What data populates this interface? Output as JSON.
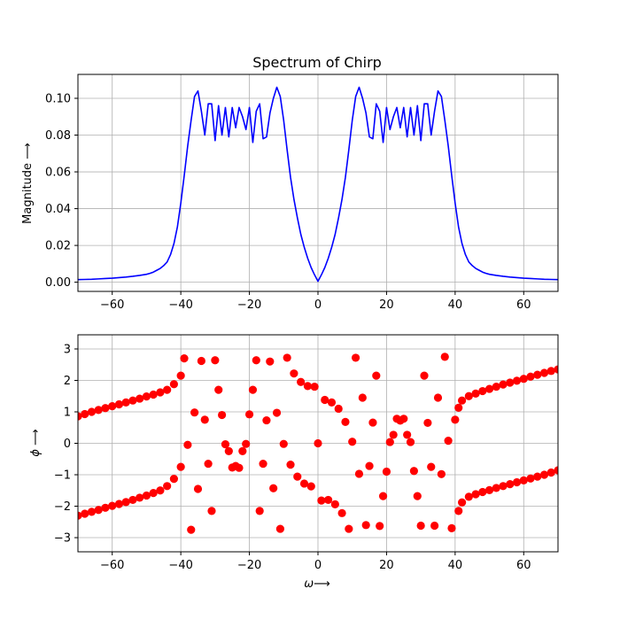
{
  "chart_data": [
    {
      "type": "line",
      "title": "Spectrum of Chirp",
      "xlabel": "",
      "ylabel": "Magnitude ⟶",
      "xlim": [
        -70,
        70
      ],
      "ylim": [
        -0.005,
        0.113
      ],
      "xticks": [
        -60,
        -40,
        -20,
        0,
        20,
        40,
        60
      ],
      "xtick_labels": [
        "−60",
        "−40",
        "−20",
        "0",
        "20",
        "40",
        "60"
      ],
      "yticks": [
        0.0,
        0.02,
        0.04,
        0.06,
        0.08,
        0.1
      ],
      "ytick_labels": [
        "0.00",
        "0.02",
        "0.04",
        "0.06",
        "0.08",
        "0.10"
      ],
      "grid": true,
      "color": "#0000ff",
      "series": [
        {
          "x": [
            0,
            1,
            2,
            3,
            4,
            5,
            6,
            7,
            8,
            9,
            10,
            11,
            12,
            13,
            14,
            15,
            16,
            17,
            18,
            19,
            20,
            21,
            22,
            23,
            24,
            25,
            26,
            27,
            28,
            29,
            30,
            31,
            32,
            33,
            34,
            35,
            36,
            37,
            38,
            39,
            40,
            41,
            42,
            43,
            44,
            45,
            46,
            47,
            48,
            49,
            50,
            52,
            54,
            56,
            58,
            60,
            62,
            64,
            66,
            68,
            70
          ],
          "y": [
            0.0005,
            0.004,
            0.008,
            0.013,
            0.019,
            0.026,
            0.035,
            0.045,
            0.057,
            0.072,
            0.088,
            0.101,
            0.106,
            0.1,
            0.092,
            0.079,
            0.078,
            0.097,
            0.093,
            0.076,
            0.095,
            0.083,
            0.09,
            0.095,
            0.084,
            0.095,
            0.079,
            0.095,
            0.08,
            0.096,
            0.077,
            0.097,
            0.097,
            0.08,
            0.093,
            0.104,
            0.101,
            0.088,
            0.074,
            0.058,
            0.043,
            0.03,
            0.021,
            0.015,
            0.011,
            0.009,
            0.0075,
            0.0065,
            0.0055,
            0.0048,
            0.0043,
            0.0037,
            0.0032,
            0.0028,
            0.0025,
            0.0022,
            0.002,
            0.0018,
            0.0016,
            0.0015,
            0.0014
          ]
        }
      ]
    },
    {
      "type": "scatter",
      "xlabel": "ω⟶",
      "ylabel": "ϕ ⟶",
      "xlim": [
        -70,
        70
      ],
      "ylim": [
        -3.45,
        3.45
      ],
      "xticks": [
        -60,
        -40,
        -20,
        0,
        20,
        40,
        60
      ],
      "xtick_labels": [
        "−60",
        "−40",
        "−20",
        "0",
        "20",
        "40",
        "60"
      ],
      "yticks": [
        -3,
        -2,
        -1,
        0,
        1,
        2,
        3
      ],
      "ytick_labels": [
        "−3",
        "−2",
        "−1",
        "0",
        "1",
        "2",
        "3"
      ],
      "grid": true,
      "color": "#ff0000",
      "series": [
        {
          "points": [
            [
              -70,
              0.86
            ],
            [
              -68,
              0.93
            ],
            [
              -66,
              1.0
            ],
            [
              -64,
              1.06
            ],
            [
              -62,
              1.12
            ],
            [
              -60,
              1.18
            ],
            [
              -58,
              1.24
            ],
            [
              -56,
              1.3
            ],
            [
              -54,
              1.36
            ],
            [
              -52,
              1.42
            ],
            [
              -50,
              1.49
            ],
            [
              -48,
              1.55
            ],
            [
              -46,
              1.62
            ],
            [
              -44,
              1.7
            ],
            [
              -42,
              1.88
            ],
            [
              -40,
              2.15
            ],
            [
              -70,
              -2.3
            ],
            [
              -68,
              -2.24
            ],
            [
              -66,
              -2.18
            ],
            [
              -64,
              -2.12
            ],
            [
              -62,
              -2.05
            ],
            [
              -60,
              -1.99
            ],
            [
              -58,
              -1.93
            ],
            [
              -56,
              -1.87
            ],
            [
              -54,
              -1.8
            ],
            [
              -52,
              -1.73
            ],
            [
              -50,
              -1.66
            ],
            [
              -48,
              -1.58
            ],
            [
              -46,
              -1.5
            ],
            [
              -44,
              -1.36
            ],
            [
              -42,
              -1.13
            ],
            [
              -40,
              -0.75
            ],
            [
              -39,
              2.7
            ],
            [
              -38,
              -0.05
            ],
            [
              -37,
              -2.75
            ],
            [
              -36,
              0.98
            ],
            [
              -35,
              -1.45
            ],
            [
              -34,
              2.62
            ],
            [
              -33,
              0.75
            ],
            [
              -32,
              -0.65
            ],
            [
              -31,
              -2.15
            ],
            [
              -30,
              2.64
            ],
            [
              -29,
              1.7
            ],
            [
              -28,
              0.9
            ],
            [
              -27,
              -0.03
            ],
            [
              -26,
              -0.25
            ],
            [
              -25,
              -0.77
            ],
            [
              -24,
              -0.72
            ],
            [
              -23,
              -0.78
            ],
            [
              -22,
              -0.25
            ],
            [
              -21,
              -0.02
            ],
            [
              -20,
              0.92
            ],
            [
              -19,
              1.7
            ],
            [
              -18,
              2.64
            ],
            [
              -17,
              -2.15
            ],
            [
              -16,
              -0.65
            ],
            [
              -15,
              0.73
            ],
            [
              -14,
              2.6
            ],
            [
              -13,
              -1.43
            ],
            [
              -12,
              0.97
            ],
            [
              -11,
              -2.72
            ],
            [
              -10,
              -0.02
            ],
            [
              -9,
              2.72
            ],
            [
              -8,
              -0.68
            ],
            [
              -7,
              2.22
            ],
            [
              -6,
              -1.06
            ],
            [
              -5,
              1.95
            ],
            [
              -4,
              -1.28
            ],
            [
              -3,
              1.82
            ],
            [
              -2,
              -1.37
            ],
            [
              -1,
              1.8
            ],
            [
              0,
              0
            ],
            [
              1,
              -1.82
            ],
            [
              2,
              1.38
            ],
            [
              3,
              -1.8
            ],
            [
              4,
              1.3
            ],
            [
              5,
              -1.94
            ],
            [
              6,
              1.1
            ],
            [
              7,
              -2.22
            ],
            [
              8,
              0.68
            ],
            [
              9,
              -2.72
            ],
            [
              10,
              0.05
            ],
            [
              11,
              2.72
            ],
            [
              12,
              -0.97
            ],
            [
              13,
              1.45
            ],
            [
              14,
              -2.6
            ],
            [
              15,
              -0.72
            ],
            [
              16,
              0.66
            ],
            [
              17,
              2.15
            ],
            [
              18,
              -2.63
            ],
            [
              19,
              -1.68
            ],
            [
              20,
              -0.9
            ],
            [
              21,
              0.04
            ],
            [
              22,
              0.27
            ],
            [
              23,
              0.78
            ],
            [
              24,
              0.72
            ],
            [
              25,
              0.78
            ],
            [
              26,
              0.27
            ],
            [
              27,
              0.04
            ],
            [
              28,
              -0.88
            ],
            [
              29,
              -1.68
            ],
            [
              30,
              -2.62
            ],
            [
              31,
              2.15
            ],
            [
              32,
              0.65
            ],
            [
              33,
              -0.75
            ],
            [
              34,
              -2.62
            ],
            [
              35,
              1.45
            ],
            [
              36,
              -0.98
            ],
            [
              37,
              2.75
            ],
            [
              38,
              0.08
            ],
            [
              39,
              -2.7
            ],
            [
              40,
              0.75
            ],
            [
              41,
              1.13
            ],
            [
              42,
              1.36
            ],
            [
              44,
              1.5
            ],
            [
              46,
              1.58
            ],
            [
              48,
              1.66
            ],
            [
              50,
              1.73
            ],
            [
              52,
              1.8
            ],
            [
              54,
              1.87
            ],
            [
              56,
              1.93
            ],
            [
              58,
              1.99
            ],
            [
              60,
              2.05
            ],
            [
              62,
              2.12
            ],
            [
              64,
              2.18
            ],
            [
              66,
              2.24
            ],
            [
              68,
              2.3
            ],
            [
              70,
              2.35
            ],
            [
              41,
              -2.15
            ],
            [
              42,
              -1.88
            ],
            [
              44,
              -1.7
            ],
            [
              46,
              -1.62
            ],
            [
              48,
              -1.55
            ],
            [
              50,
              -1.49
            ],
            [
              52,
              -1.42
            ],
            [
              54,
              -1.36
            ],
            [
              56,
              -1.3
            ],
            [
              58,
              -1.24
            ],
            [
              60,
              -1.18
            ],
            [
              62,
              -1.12
            ],
            [
              64,
              -1.06
            ],
            [
              66,
              -1.0
            ],
            [
              68,
              -0.93
            ],
            [
              70,
              -0.86
            ]
          ]
        }
      ]
    }
  ]
}
